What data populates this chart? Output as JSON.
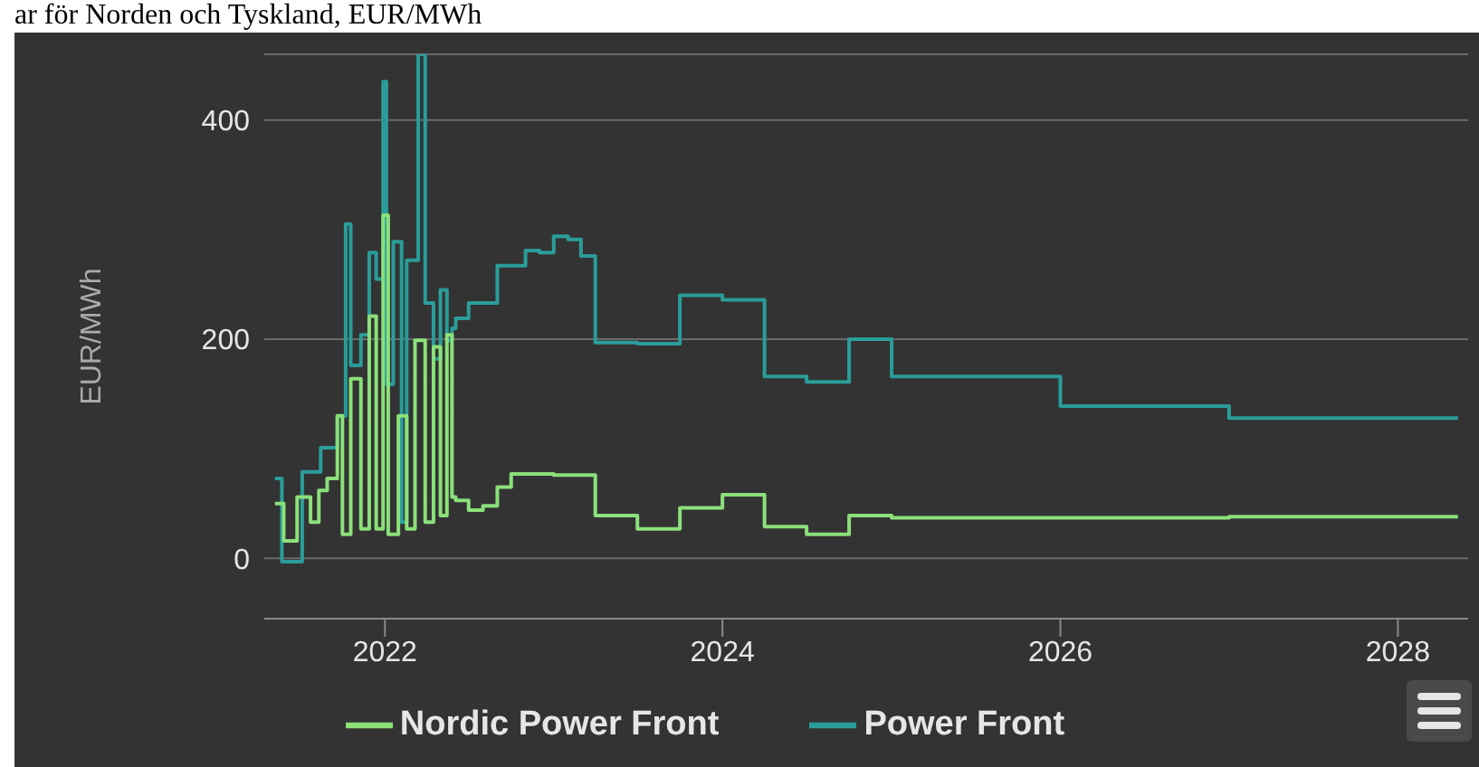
{
  "chart_data": {
    "type": "step",
    "title": "ar för Norden och Tyskland, EUR/MWh",
    "ylabel": "EUR/MWh",
    "xlim": [
      "2021-04-15",
      "2028-06-01"
    ],
    "xticks": [
      {
        "value": "2022-01-01",
        "label": "2022"
      },
      {
        "value": "2024-01-01",
        "label": "2024"
      },
      {
        "value": "2026-01-01",
        "label": "2026"
      },
      {
        "value": "2028-01-01",
        "label": "2028"
      }
    ],
    "ylim": [
      -55,
      460
    ],
    "yticks": [
      0,
      200,
      400
    ],
    "grid": "y",
    "legend": "bottom",
    "marker": "none",
    "line_style": "solid",
    "series": [
      {
        "name": "Power Front",
        "color": "#2a9d9a",
        "x": [
          "2021-05-08",
          "2021-05-23",
          "2021-07-06",
          "2021-08-15",
          "2021-09-20",
          "2021-10-08",
          "2021-10-19",
          "2021-11-10",
          "2021-11-28",
          "2021-12-13",
          "2021-12-28",
          "2022-01-04",
          "2022-01-19",
          "2022-02-06",
          "2022-02-17",
          "2022-03-14",
          "2022-03-29",
          "2022-04-16",
          "2022-05-01",
          "2022-05-15",
          "2022-05-26",
          "2022-06-03",
          "2022-07-01",
          "2022-09-01",
          "2022-11-01",
          "2022-12-01",
          "2023-01-01",
          "2023-02-01",
          "2023-03-01",
          "2023-04-01",
          "2023-07-01",
          "2023-10-01",
          "2024-01-01",
          "2024-04-01",
          "2024-07-01",
          "2024-10-01",
          "2025-01-01",
          "2026-01-01",
          "2027-01-01",
          "2028-05-10"
        ],
        "values": [
          73,
          -3,
          79,
          101,
          130,
          305,
          176,
          204,
          279,
          255,
          435,
          159,
          289,
          33,
          272,
          460,
          233,
          182,
          245,
          199,
          210,
          219,
          233,
          267,
          281,
          279,
          294,
          291,
          276,
          197,
          196,
          240,
          236,
          166,
          161,
          200,
          166,
          139,
          128,
          128
        ]
      },
      {
        "name": "Nordic Power Front",
        "color": "#8be07a",
        "x": [
          "2021-05-08",
          "2021-05-27",
          "2021-06-25",
          "2021-07-24",
          "2021-08-11",
          "2021-08-29",
          "2021-09-20",
          "2021-10-01",
          "2021-10-19",
          "2021-11-10",
          "2021-11-28",
          "2021-12-13",
          "2021-12-28",
          "2022-01-08",
          "2022-01-30",
          "2022-02-17",
          "2022-03-07",
          "2022-03-29",
          "2022-04-16",
          "2022-05-01",
          "2022-05-15",
          "2022-05-26",
          "2022-06-03",
          "2022-07-01",
          "2022-08-01",
          "2022-09-01",
          "2022-10-01",
          "2023-01-01",
          "2023-04-01",
          "2023-07-01",
          "2023-10-01",
          "2024-01-01",
          "2024-04-01",
          "2024-07-01",
          "2024-10-01",
          "2025-01-01",
          "2026-01-01",
          "2027-01-01",
          "2028-05-10"
        ],
        "values": [
          50,
          16,
          56,
          33,
          62,
          73,
          130,
          22,
          164,
          27,
          221,
          27,
          313,
          22,
          130,
          27,
          199,
          33,
          193,
          39,
          204,
          56,
          53,
          44,
          48,
          65,
          77,
          76,
          39,
          27,
          46,
          58,
          29,
          22,
          39,
          37,
          37,
          38,
          38
        ]
      }
    ]
  }
}
